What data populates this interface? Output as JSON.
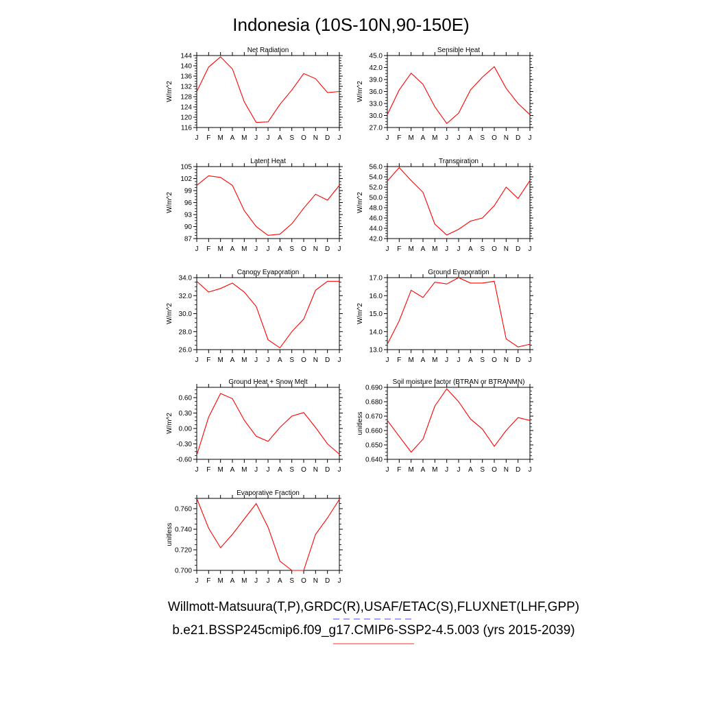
{
  "figure": {
    "title": "Indonesia (10S-10N,90-150E)",
    "legend": {
      "line1": "Willmott-Matsuura(T,P),GRDC(R),USAF/ETAC(S),FLUXNET(LHF,GPP)",
      "line2": "b.e21.BSSP245cmip6.f09_g17.CMIP6-SSP2-4.5.003 (yrs 2015-2039)",
      "line1_color": "#6b6bff",
      "line2_color": "#ff5555"
    },
    "months": [
      "J",
      "F",
      "M",
      "A",
      "M",
      "J",
      "J",
      "A",
      "S",
      "O",
      "N",
      "D",
      "J"
    ],
    "series_color": "#ff0000"
  },
  "chart_data": [
    {
      "type": "line",
      "title": "Net Radiation",
      "ylabel": "W/m^2",
      "ylim": [
        116,
        144
      ],
      "yticks": [
        "116",
        "120",
        "124",
        "128",
        "132",
        "136",
        "140",
        "144"
      ],
      "values": [
        130.0,
        139.5,
        143.5,
        138.8,
        126.0,
        118.0,
        118.2,
        125.0,
        130.6,
        137.0,
        135.0,
        129.6,
        130.0
      ]
    },
    {
      "type": "line",
      "title": "Sensible Heat",
      "ylabel": "W/m^2",
      "ylim": [
        27.0,
        45.0
      ],
      "yticks": [
        "27.0",
        "30.0",
        "33.0",
        "36.0",
        "39.0",
        "42.0",
        "45.0"
      ],
      "values": [
        30.2,
        36.4,
        40.6,
        37.8,
        32.2,
        28.0,
        30.6,
        36.4,
        39.6,
        42.2,
        36.8,
        33.0,
        30.2
      ]
    },
    {
      "type": "line",
      "title": "Latent Heat",
      "ylabel": "W/m^2",
      "ylim": [
        87,
        105
      ],
      "yticks": [
        "87",
        "90",
        "93",
        "96",
        "99",
        "102",
        "105"
      ],
      "values": [
        100.3,
        102.7,
        102.3,
        100.3,
        94.0,
        90.0,
        87.8,
        88.1,
        90.7,
        94.6,
        98.1,
        96.6,
        100.3
      ]
    },
    {
      "type": "line",
      "title": "Transpiration",
      "ylabel": "W/m^2",
      "ylim": [
        42.0,
        56.0
      ],
      "yticks": [
        "42.0",
        "44.0",
        "46.0",
        "48.0",
        "50.0",
        "52.0",
        "54.0",
        "56.0"
      ],
      "values": [
        53.2,
        55.8,
        53.3,
        51.0,
        44.8,
        42.7,
        43.8,
        45.4,
        46.0,
        48.4,
        52.0,
        49.8,
        53.3
      ]
    },
    {
      "type": "line",
      "title": "Canopy Evaporation",
      "ylabel": "W/m^2",
      "ylim": [
        26.0,
        34.0
      ],
      "yticks": [
        "26.0",
        "28.0",
        "30.0",
        "32.0",
        "34.0"
      ],
      "values": [
        33.6,
        32.4,
        32.8,
        33.4,
        32.4,
        30.8,
        27.1,
        26.2,
        28.0,
        29.4,
        32.6,
        33.6,
        33.6
      ]
    },
    {
      "type": "line",
      "title": "Ground Evaporation",
      "ylabel": "W/m^2",
      "ylim": [
        13.0,
        17.0
      ],
      "yticks": [
        "13.0",
        "14.0",
        "15.0",
        "16.0",
        "17.0"
      ],
      "values": [
        13.3,
        14.6,
        16.3,
        15.9,
        16.75,
        16.65,
        17.0,
        16.7,
        16.7,
        16.8,
        13.6,
        13.15,
        13.3
      ]
    },
    {
      "type": "line",
      "title": "Ground Heat + Snow Melt",
      "ylabel": "W/m^2",
      "ylim": [
        -0.6,
        0.8
      ],
      "yticks": [
        "-0.60",
        "-0.30",
        "0.00",
        "0.30",
        "0.60"
      ],
      "ytick_values": [
        -0.6,
        -0.3,
        0.0,
        0.3,
        0.6
      ],
      "values": [
        -0.52,
        0.22,
        0.68,
        0.58,
        0.16,
        -0.15,
        -0.25,
        0.02,
        0.24,
        0.31,
        0.02,
        -0.3,
        -0.5
      ]
    },
    {
      "type": "line",
      "title": "Soil moisture factor (BTRAN or BTRANMN)",
      "ylabel": "unitless",
      "ylim": [
        0.64,
        0.69
      ],
      "yticks": [
        "0.640",
        "0.650",
        "0.660",
        "0.670",
        "0.680",
        "0.690"
      ],
      "values": [
        0.667,
        0.656,
        0.645,
        0.654,
        0.677,
        0.689,
        0.68,
        0.668,
        0.661,
        0.649,
        0.66,
        0.669,
        0.667
      ]
    },
    {
      "type": "line",
      "title": "Evaporative Fraction",
      "ylabel": "unitless",
      "ylim": [
        0.7,
        0.77
      ],
      "yticks": [
        "0.700",
        "0.720",
        "0.740",
        "0.760"
      ],
      "ytick_values": [
        0.7,
        0.72,
        0.74,
        0.76
      ],
      "values": [
        0.77,
        0.741,
        0.722,
        0.735,
        0.75,
        0.765,
        0.742,
        0.709,
        0.7,
        0.7,
        0.735,
        0.751,
        0.769
      ]
    }
  ]
}
